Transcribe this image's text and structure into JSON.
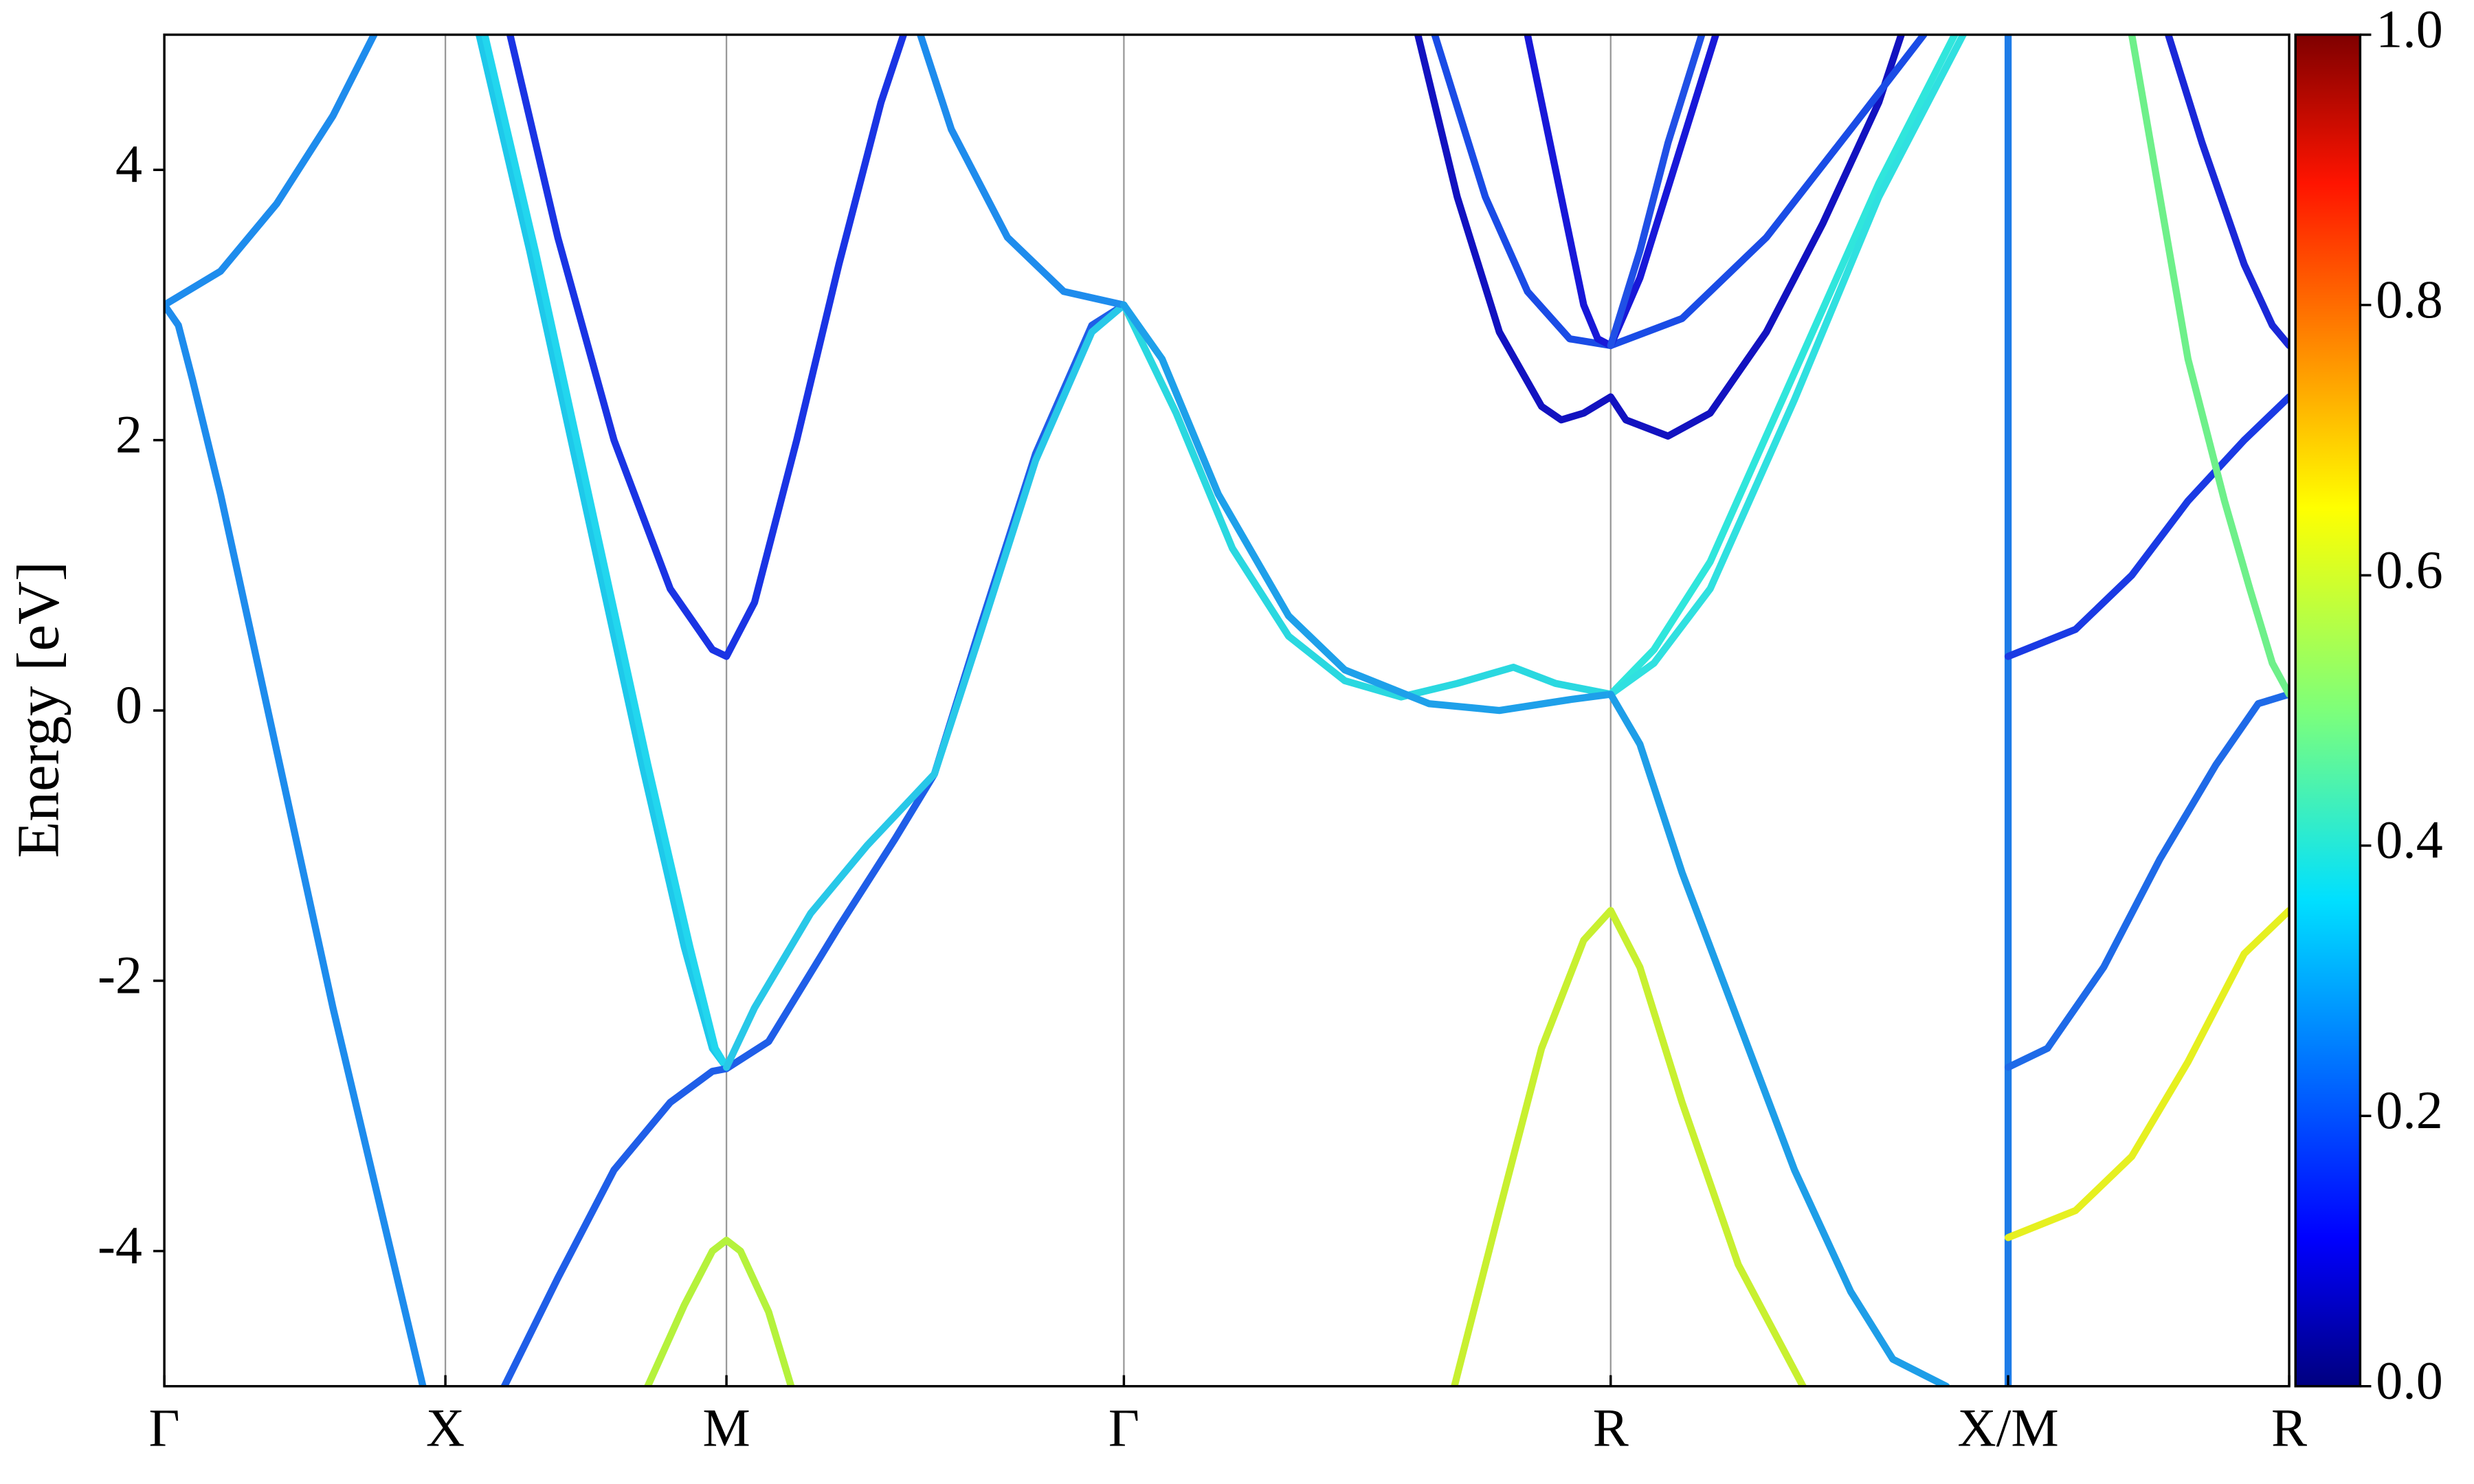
{
  "chart_data": {
    "type": "line",
    "ylabel": "Energy [eV]",
    "xlim": [
      0,
      7.56
    ],
    "ylim": [
      -5,
      5
    ],
    "xticks": [
      {
        "value": 0,
        "label": "Γ"
      },
      {
        "value": 1,
        "label": "X"
      },
      {
        "value": 2,
        "label": "M"
      },
      {
        "value": 3.414,
        "label": "Γ"
      },
      {
        "value": 5.146,
        "label": "R"
      },
      {
        "value": 6.56,
        "label": "X/M"
      },
      {
        "value": 7.56,
        "label": "R"
      }
    ],
    "yticks": [
      -4,
      -2,
      0,
      2,
      4
    ],
    "grid": "x",
    "colorbar": {
      "colormap": "jet",
      "lim": [
        0,
        1
      ],
      "ticks": [
        {
          "value": 0,
          "label": "0.0"
        },
        0.2,
        0.4,
        0.6,
        0.8,
        {
          "value": 1,
          "label": "1.0"
        }
      ]
    },
    "series": [
      {
        "color": "#1e8ced",
        "x": [
          0,
          0.2,
          0.4,
          0.6,
          0.746
        ],
        "values": [
          3.0,
          3.25,
          3.75,
          4.4,
          5.0
        ]
      },
      {
        "color": "#1e8ced",
        "x": [
          0,
          0.05,
          0.1,
          0.2,
          0.4,
          0.6,
          0.8,
          0.92
        ],
        "values": [
          3.0,
          2.85,
          2.45,
          1.6,
          -0.3,
          -2.2,
          -3.95,
          -5
        ]
      },
      {
        "color": "#1ec8ea",
        "x": [
          1.12,
          1.3,
          1.5,
          1.7,
          1.85,
          1.95,
          2
        ],
        "values": [
          5,
          3.4,
          1.5,
          -0.4,
          -1.75,
          -2.5,
          -2.64
        ]
      },
      {
        "color": "#22d6ee",
        "x": [
          1.14,
          1.32,
          1.52,
          1.72,
          1.87,
          1.96,
          2
        ],
        "values": [
          5,
          3.4,
          1.5,
          -0.4,
          -1.75,
          -2.5,
          -2.64
        ]
      },
      {
        "color": "#1a34e4",
        "x": [
          1.23,
          1.4,
          1.6,
          1.8,
          1.95,
          2,
          2.1,
          2.25,
          2.4,
          2.55,
          2.63
        ],
        "values": [
          5,
          3.5,
          2.0,
          0.9,
          0.45,
          0.4,
          0.8,
          2.0,
          3.3,
          4.5,
          5
        ]
      },
      {
        "color": "#1f5ee8",
        "x": [
          1.21,
          1.4,
          1.6,
          1.8,
          1.95,
          2,
          2.15,
          2.4,
          2.6,
          2.74,
          2.9,
          3.1,
          3.3,
          3.414
        ],
        "values": [
          -5,
          -4.2,
          -3.4,
          -2.9,
          -2.67,
          -2.65,
          -2.45,
          -1.6,
          -0.95,
          -0.47,
          0.6,
          1.9,
          2.85,
          3.0
        ]
      },
      {
        "color": "#28c8e8",
        "x": [
          2,
          2.1,
          2.3,
          2.5,
          2.74,
          2.9,
          3.1,
          3.3,
          3.414
        ],
        "values": [
          -2.64,
          -2.2,
          -1.5,
          -1.0,
          -0.47,
          0.55,
          1.85,
          2.8,
          3.0
        ]
      },
      {
        "color": "#b5f23c",
        "x": [
          1.72,
          1.85,
          1.95,
          2,
          2.05,
          2.15,
          2.23
        ],
        "values": [
          -5,
          -4.4,
          -4.0,
          -3.92,
          -4.0,
          -4.45,
          -5
        ]
      },
      {
        "color": "#1e8ced",
        "x": [
          2.69,
          2.8,
          3.0,
          3.2,
          3.414
        ],
        "values": [
          5,
          4.3,
          3.5,
          3.1,
          3.0
        ]
      },
      {
        "color": "#2ad8e0",
        "x": [
          3.414,
          3.6,
          3.8,
          4.0,
          4.2,
          4.4,
          4.6,
          4.8,
          4.95,
          5.146
        ],
        "values": [
          3.0,
          2.2,
          1.2,
          0.55,
          0.22,
          0.1,
          0.2,
          0.32,
          0.2,
          0.12
        ]
      },
      {
        "color": "#1ea0ea",
        "x": [
          3.414,
          3.55,
          3.75,
          4.0,
          4.2,
          4.5,
          4.75,
          5.0,
          5.146
        ],
        "values": [
          3.0,
          2.6,
          1.6,
          0.7,
          0.3,
          0.05,
          0.0,
          0.08,
          0.12
        ]
      },
      {
        "color": "#1212c0",
        "x": [
          4.46,
          4.6,
          4.75,
          4.9,
          4.97,
          5.05,
          5.146,
          5.2,
          5.35,
          5.5,
          5.7,
          5.9,
          6.1,
          6.18
        ],
        "values": [
          5,
          3.8,
          2.8,
          2.25,
          2.15,
          2.2,
          2.32,
          2.15,
          2.03,
          2.2,
          2.8,
          3.6,
          4.5,
          5
        ]
      },
      {
        "color": "#1a4ce6",
        "x": [
          4.52,
          4.7,
          4.85,
          5.0,
          5.146,
          5.4,
          5.7,
          6.0,
          6.26
        ],
        "values": [
          5,
          3.8,
          3.1,
          2.75,
          2.7,
          2.9,
          3.5,
          4.3,
          5
        ]
      },
      {
        "color": "#1818d8",
        "x": [
          4.85,
          4.95,
          5.05,
          5.1,
          5.146,
          5.25,
          5.4,
          5.52
        ],
        "values": [
          5,
          4.0,
          3.0,
          2.75,
          2.7,
          3.2,
          4.2,
          5
        ]
      },
      {
        "color": "#2050e6",
        "x": [
          5.146,
          5.25,
          5.35,
          5.47
        ],
        "values": [
          2.7,
          3.4,
          4.2,
          5
        ]
      },
      {
        "color": "#c8f030",
        "x": [
          4.59,
          4.75,
          4.9,
          5.05,
          5.146,
          5.25,
          5.4,
          5.6,
          5.83
        ],
        "values": [
          -5,
          -3.7,
          -2.5,
          -1.7,
          -1.48,
          -1.9,
          -2.9,
          -4.1,
          -5
        ]
      },
      {
        "color": "#30e6dc",
        "x": [
          5.146,
          5.3,
          5.5,
          5.8,
          6.1,
          6.37
        ],
        "values": [
          0.12,
          0.45,
          1.1,
          2.5,
          3.9,
          5
        ]
      },
      {
        "color": "#30e0e0",
        "x": [
          5.146,
          5.3,
          5.5,
          5.8,
          6.1,
          6.4
        ],
        "values": [
          0.12,
          0.35,
          0.9,
          2.3,
          3.8,
          5
        ]
      },
      {
        "color": "#1e9ee8",
        "x": [
          5.146,
          5.25,
          5.4,
          5.6,
          5.8,
          6.0,
          6.15,
          6.34
        ],
        "values": [
          0.12,
          -0.25,
          -1.2,
          -2.3,
          -3.4,
          -4.3,
          -4.8,
          -5
        ]
      },
      {
        "color": "#1e7ce8",
        "x": [
          6.56,
          6.56
        ],
        "values": [
          -5,
          5
        ]
      },
      {
        "color": "#1a3ae4",
        "x": [
          6.56,
          6.8,
          7.0,
          7.2,
          7.4,
          7.56
        ],
        "values": [
          0.4,
          0.6,
          1.0,
          1.55,
          2.0,
          2.32
        ]
      },
      {
        "color": "#1e6ae8",
        "x": [
          6.56,
          6.7,
          6.9,
          7.1,
          7.3,
          7.45,
          7.56
        ],
        "values": [
          -2.64,
          -2.5,
          -1.9,
          -1.1,
          -0.4,
          0.05,
          0.12
        ]
      },
      {
        "color": "#e6f020",
        "x": [
          6.56,
          6.8,
          7.0,
          7.2,
          7.4,
          7.56
        ],
        "values": [
          -3.9,
          -3.7,
          -3.3,
          -2.6,
          -1.8,
          -1.48
        ]
      },
      {
        "color": "#6ef08a",
        "x": [
          7.0,
          7.1,
          7.2,
          7.33,
          7.42,
          7.5,
          7.56
        ],
        "values": [
          5,
          3.8,
          2.6,
          1.55,
          0.9,
          0.35,
          0.12
        ]
      },
      {
        "color": "#1a28d8",
        "x": [
          7.13,
          7.25,
          7.4,
          7.5,
          7.56
        ],
        "values": [
          5,
          4.2,
          3.3,
          2.85,
          2.7
        ]
      }
    ]
  }
}
